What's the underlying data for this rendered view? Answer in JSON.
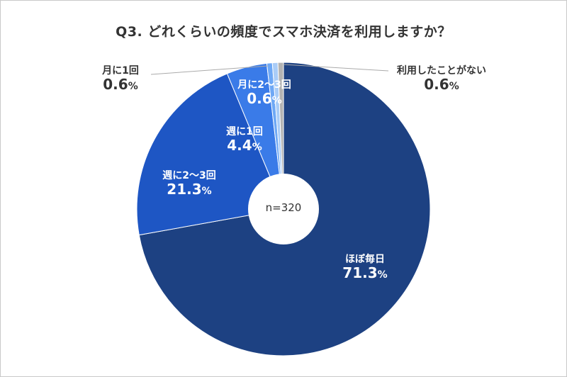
{
  "chart_data": {
    "type": "pie",
    "title": "Q3. どれくらいの頻度でスマホ決済を利用しますか？",
    "center_label": "n=320",
    "unit": "%",
    "slices": [
      {
        "label": "ほぼ毎日",
        "value": 71.3,
        "value_text": "71.3",
        "color": "#1d4182"
      },
      {
        "label": "週に2〜3回",
        "value": 21.3,
        "value_text": "21.3",
        "color": "#1e56c4"
      },
      {
        "label": "週に1回",
        "value": 4.4,
        "value_text": "4.4",
        "color": "#3a7be8"
      },
      {
        "label": "月に2〜3回",
        "value": 0.6,
        "value_text": "0.6",
        "color": "#6ea8f5"
      },
      {
        "label": "月に1回",
        "value": 0.6,
        "value_text": "0.6",
        "color": "#a9ccf7"
      },
      {
        "label": "利用したことがない",
        "value": 0.6,
        "value_text": "0.6",
        "color": "#b3b3b3"
      }
    ]
  }
}
